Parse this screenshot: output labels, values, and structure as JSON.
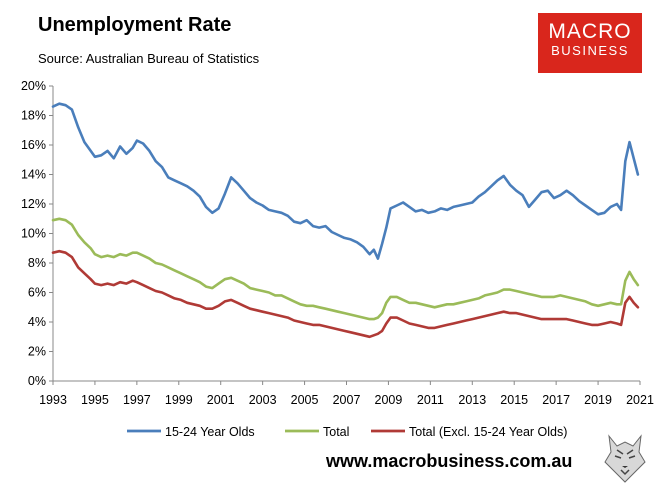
{
  "header": {
    "title": "Unemployment Rate",
    "subtitle": "Source: Australian Bureau of Statistics"
  },
  "logo": {
    "line1": "MACRO",
    "line2": "BUSINESS",
    "color": "#d9261c"
  },
  "footer": {
    "url": "www.macrobusiness.com.au"
  },
  "chart_data": {
    "type": "line",
    "title": "Unemployment Rate",
    "xlabel": "",
    "ylabel": "",
    "xlim": [
      1993,
      2021
    ],
    "ylim": [
      0,
      20
    ],
    "grid": false,
    "legend_position": "bottom",
    "x_ticks": [
      "1993",
      "1995",
      "1997",
      "1999",
      "2001",
      "2003",
      "2005",
      "2007",
      "2009",
      "2011",
      "2013",
      "2015",
      "2017",
      "2019",
      "2021"
    ],
    "y_ticks": [
      "0%",
      "2%",
      "4%",
      "6%",
      "8%",
      "10%",
      "12%",
      "14%",
      "16%",
      "18%",
      "20%"
    ],
    "series": [
      {
        "name": "15-24 Year Olds",
        "color": "#4a7ebb",
        "x": [
          1993.0,
          1993.3,
          1993.6,
          1993.9,
          1994.2,
          1994.5,
          1994.8,
          1995.0,
          1995.3,
          1995.6,
          1995.9,
          1996.2,
          1996.5,
          1996.8,
          1997.0,
          1997.3,
          1997.6,
          1997.9,
          1998.2,
          1998.5,
          1998.8,
          1999.1,
          1999.4,
          1999.7,
          2000.0,
          2000.3,
          2000.6,
          2000.9,
          2001.2,
          2001.5,
          2001.8,
          2002.1,
          2002.4,
          2002.7,
          2003.0,
          2003.3,
          2003.6,
          2003.9,
          2004.2,
          2004.5,
          2004.8,
          2005.1,
          2005.4,
          2005.7,
          2006.0,
          2006.3,
          2006.6,
          2006.9,
          2007.2,
          2007.5,
          2007.8,
          2008.1,
          2008.3,
          2008.5,
          2008.7,
          2008.9,
          2009.1,
          2009.4,
          2009.7,
          2010.0,
          2010.3,
          2010.6,
          2010.9,
          2011.2,
          2011.5,
          2011.8,
          2012.1,
          2012.4,
          2012.7,
          2013.0,
          2013.3,
          2013.6,
          2013.9,
          2014.2,
          2014.5,
          2014.8,
          2015.1,
          2015.4,
          2015.7,
          2016.0,
          2016.3,
          2016.6,
          2016.9,
          2017.2,
          2017.5,
          2017.8,
          2018.1,
          2018.4,
          2018.7,
          2019.0,
          2019.3,
          2019.6,
          2019.9,
          2020.1,
          2020.3,
          2020.5,
          2020.7,
          2020.9
        ],
        "values": [
          18.6,
          18.8,
          18.7,
          18.4,
          17.2,
          16.2,
          15.6,
          15.2,
          15.3,
          15.6,
          15.1,
          15.9,
          15.4,
          15.8,
          16.3,
          16.1,
          15.6,
          14.9,
          14.5,
          13.8,
          13.6,
          13.4,
          13.2,
          12.9,
          12.5,
          11.8,
          11.4,
          11.7,
          12.7,
          13.8,
          13.4,
          12.9,
          12.4,
          12.1,
          11.9,
          11.6,
          11.5,
          11.4,
          11.2,
          10.8,
          10.7,
          10.9,
          10.5,
          10.4,
          10.5,
          10.1,
          9.9,
          9.7,
          9.6,
          9.4,
          9.1,
          8.6,
          8.9,
          8.3,
          9.3,
          10.4,
          11.7,
          11.9,
          12.1,
          11.8,
          11.5,
          11.6,
          11.4,
          11.5,
          11.7,
          11.6,
          11.8,
          11.9,
          12.0,
          12.1,
          12.5,
          12.8,
          13.2,
          13.6,
          13.9,
          13.3,
          12.9,
          12.6,
          11.8,
          12.3,
          12.8,
          12.9,
          12.4,
          12.6,
          12.9,
          12.6,
          12.2,
          11.9,
          11.6,
          11.3,
          11.4,
          11.8,
          12.0,
          11.6,
          14.9,
          16.2,
          15.1,
          14.0
        ]
      },
      {
        "name": "Total",
        "color": "#9bbb59",
        "x": [
          1993.0,
          1993.3,
          1993.6,
          1993.9,
          1994.2,
          1994.5,
          1994.8,
          1995.0,
          1995.3,
          1995.6,
          1995.9,
          1996.2,
          1996.5,
          1996.8,
          1997.0,
          1997.3,
          1997.6,
          1997.9,
          1998.2,
          1998.5,
          1998.8,
          1999.1,
          1999.4,
          1999.7,
          2000.0,
          2000.3,
          2000.6,
          2000.9,
          2001.2,
          2001.5,
          2001.8,
          2002.1,
          2002.4,
          2002.7,
          2003.0,
          2003.3,
          2003.6,
          2003.9,
          2004.2,
          2004.5,
          2004.8,
          2005.1,
          2005.4,
          2005.7,
          2006.0,
          2006.3,
          2006.6,
          2006.9,
          2007.2,
          2007.5,
          2007.8,
          2008.1,
          2008.3,
          2008.5,
          2008.7,
          2008.9,
          2009.1,
          2009.4,
          2009.7,
          2010.0,
          2010.3,
          2010.6,
          2010.9,
          2011.2,
          2011.5,
          2011.8,
          2012.1,
          2012.4,
          2012.7,
          2013.0,
          2013.3,
          2013.6,
          2013.9,
          2014.2,
          2014.5,
          2014.8,
          2015.1,
          2015.4,
          2015.7,
          2016.0,
          2016.3,
          2016.6,
          2016.9,
          2017.2,
          2017.5,
          2017.8,
          2018.1,
          2018.4,
          2018.7,
          2019.0,
          2019.3,
          2019.6,
          2019.9,
          2020.1,
          2020.3,
          2020.5,
          2020.7,
          2020.9
        ],
        "values": [
          10.9,
          11.0,
          10.9,
          10.6,
          9.9,
          9.4,
          9.0,
          8.6,
          8.4,
          8.5,
          8.4,
          8.6,
          8.5,
          8.7,
          8.7,
          8.5,
          8.3,
          8.0,
          7.9,
          7.7,
          7.5,
          7.3,
          7.1,
          6.9,
          6.7,
          6.4,
          6.3,
          6.6,
          6.9,
          7.0,
          6.8,
          6.6,
          6.3,
          6.2,
          6.1,
          6.0,
          5.8,
          5.8,
          5.6,
          5.4,
          5.2,
          5.1,
          5.1,
          5.0,
          4.9,
          4.8,
          4.7,
          4.6,
          4.5,
          4.4,
          4.3,
          4.2,
          4.2,
          4.3,
          4.6,
          5.3,
          5.7,
          5.7,
          5.5,
          5.3,
          5.3,
          5.2,
          5.1,
          5.0,
          5.1,
          5.2,
          5.2,
          5.3,
          5.4,
          5.5,
          5.6,
          5.8,
          5.9,
          6.0,
          6.2,
          6.2,
          6.1,
          6.0,
          5.9,
          5.8,
          5.7,
          5.7,
          5.7,
          5.8,
          5.7,
          5.6,
          5.5,
          5.4,
          5.2,
          5.1,
          5.2,
          5.3,
          5.2,
          5.2,
          6.8,
          7.4,
          6.9,
          6.5
        ]
      },
      {
        "name": "Total (Excl. 15-24 Year Olds)",
        "color": "#b03a36",
        "x": [
          1993.0,
          1993.3,
          1993.6,
          1993.9,
          1994.2,
          1994.5,
          1994.8,
          1995.0,
          1995.3,
          1995.6,
          1995.9,
          1996.2,
          1996.5,
          1996.8,
          1997.0,
          1997.3,
          1997.6,
          1997.9,
          1998.2,
          1998.5,
          1998.8,
          1999.1,
          1999.4,
          1999.7,
          2000.0,
          2000.3,
          2000.6,
          2000.9,
          2001.2,
          2001.5,
          2001.8,
          2002.1,
          2002.4,
          2002.7,
          2003.0,
          2003.3,
          2003.6,
          2003.9,
          2004.2,
          2004.5,
          2004.8,
          2005.1,
          2005.4,
          2005.7,
          2006.0,
          2006.3,
          2006.6,
          2006.9,
          2007.2,
          2007.5,
          2007.8,
          2008.1,
          2008.3,
          2008.5,
          2008.7,
          2008.9,
          2009.1,
          2009.4,
          2009.7,
          2010.0,
          2010.3,
          2010.6,
          2010.9,
          2011.2,
          2011.5,
          2011.8,
          2012.1,
          2012.4,
          2012.7,
          2013.0,
          2013.3,
          2013.6,
          2013.9,
          2014.2,
          2014.5,
          2014.8,
          2015.1,
          2015.4,
          2015.7,
          2016.0,
          2016.3,
          2016.6,
          2016.9,
          2017.2,
          2017.5,
          2017.8,
          2018.1,
          2018.4,
          2018.7,
          2019.0,
          2019.3,
          2019.6,
          2019.9,
          2020.1,
          2020.3,
          2020.5,
          2020.7,
          2020.9
        ],
        "values": [
          8.7,
          8.8,
          8.7,
          8.4,
          7.7,
          7.3,
          6.9,
          6.6,
          6.5,
          6.6,
          6.5,
          6.7,
          6.6,
          6.8,
          6.7,
          6.5,
          6.3,
          6.1,
          6.0,
          5.8,
          5.6,
          5.5,
          5.3,
          5.2,
          5.1,
          4.9,
          4.9,
          5.1,
          5.4,
          5.5,
          5.3,
          5.1,
          4.9,
          4.8,
          4.7,
          4.6,
          4.5,
          4.4,
          4.3,
          4.1,
          4.0,
          3.9,
          3.8,
          3.8,
          3.7,
          3.6,
          3.5,
          3.4,
          3.3,
          3.2,
          3.1,
          3.0,
          3.1,
          3.2,
          3.4,
          3.9,
          4.3,
          4.3,
          4.1,
          3.9,
          3.8,
          3.7,
          3.6,
          3.6,
          3.7,
          3.8,
          3.9,
          4.0,
          4.1,
          4.2,
          4.3,
          4.4,
          4.5,
          4.6,
          4.7,
          4.6,
          4.6,
          4.5,
          4.4,
          4.3,
          4.2,
          4.2,
          4.2,
          4.2,
          4.2,
          4.1,
          4.0,
          3.9,
          3.8,
          3.8,
          3.9,
          4.0,
          3.9,
          3.8,
          5.3,
          5.7,
          5.3,
          5.0
        ]
      }
    ]
  }
}
